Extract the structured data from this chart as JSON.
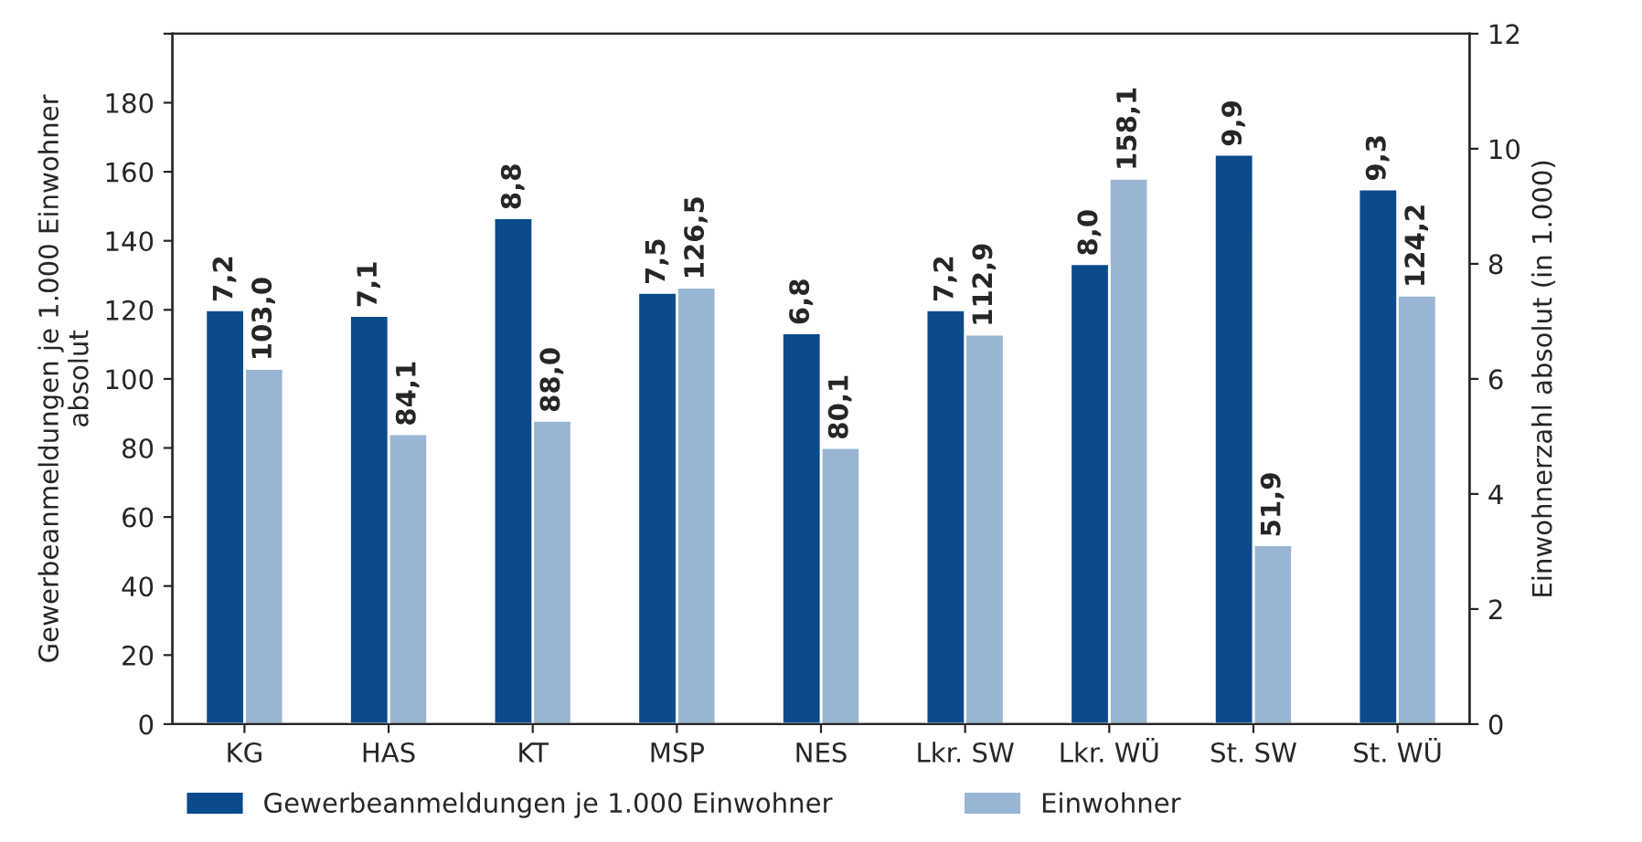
{
  "chart_data": {
    "type": "bar",
    "xlabel": null,
    "ylabel": "Gewerbeanmeldungen je 1.000 Einwohner\nabsolut",
    "y2label": "Einwohnerzahl absolut (in 1.000)",
    "categories": [
      "KG",
      "HAS",
      "KT",
      "MSP",
      "NES",
      "Lkr. SW",
      "Lkr. WÜ",
      "St. SW",
      "St. WÜ"
    ],
    "series": [
      {
        "name": "Gewerbeanmeldungen je 1.000 Einwohner",
        "color": "#0b4a8b",
        "axis": "y2",
        "values": [
          7.2,
          7.1,
          8.8,
          7.5,
          6.8,
          7.2,
          8.0,
          9.9,
          9.3
        ],
        "value_labels": [
          "7,2",
          "7,1",
          "8,8",
          "7,5",
          "6,8",
          "7,2",
          "8,0",
          "9,9",
          "9,3"
        ]
      },
      {
        "name": "Einwohner",
        "color": "#98b6d3",
        "values": [
          103.0,
          84.1,
          88.0,
          126.5,
          80.1,
          112.9,
          158.1,
          51.9,
          124.2
        ],
        "value_labels": [
          "103,0",
          "84,1",
          "88,0",
          "126,5",
          "80,1",
          "112,9",
          "158,1",
          "51,9",
          "124,2"
        ]
      }
    ],
    "ylim": [
      0,
      200
    ],
    "yticks": [
      0,
      20,
      40,
      60,
      80,
      100,
      120,
      140,
      160,
      180,
      {
        "value": 200,
        "label": null
      }
    ],
    "y2lim": [
      0,
      12
    ],
    "y2ticks": [
      0,
      2,
      4,
      6,
      8,
      10,
      12
    ],
    "grid": false,
    "legend": "bottom left"
  }
}
